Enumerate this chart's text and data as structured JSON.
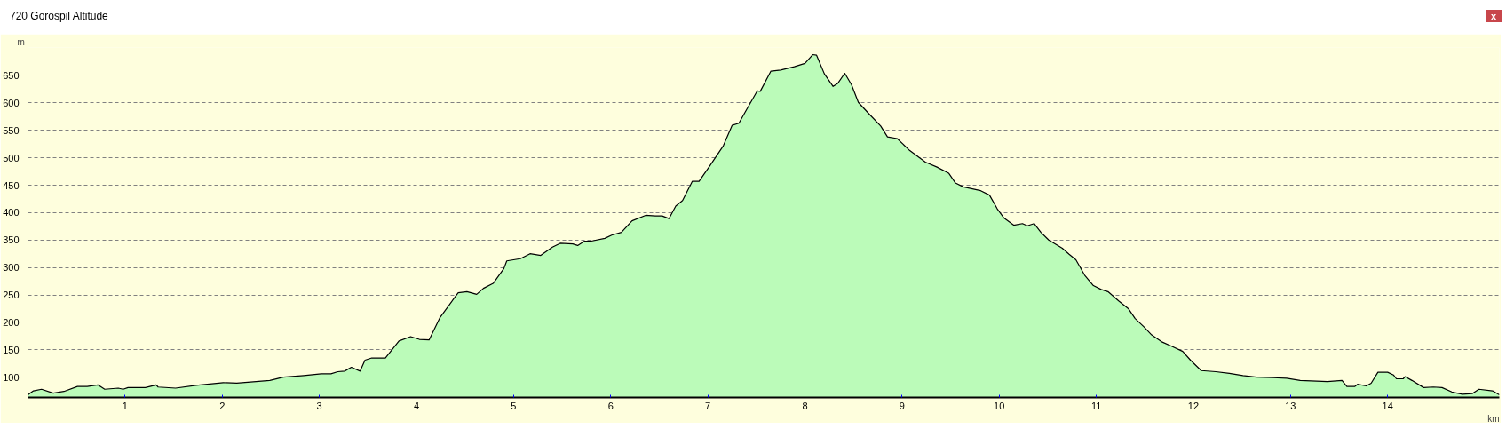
{
  "chart_data": {
    "type": "area",
    "title": "720 Gorospil Altitude",
    "xlabel": "km",
    "ylabel": "m",
    "annotations": [
      "x"
    ],
    "x": [
      0,
      0.056,
      0.14,
      0.26,
      0.37,
      0.51,
      0.61,
      0.72,
      0.79,
      0.93,
      0.98,
      1.03,
      1.21,
      1.32,
      1.34,
      1.52,
      1.73,
      2.01,
      2.15,
      2.49,
      2.63,
      2.84,
      3.02,
      3.12,
      3.19,
      3.26,
      3.33,
      3.42,
      3.47,
      3.54,
      3.68,
      3.82,
      3.94,
      4.03,
      4.13,
      4.24,
      4.38,
      4.43,
      4.52,
      4.62,
      4.69,
      4.79,
      4.9,
      4.93,
      5.0,
      5.07,
      5.17,
      5.28,
      5.4,
      5.48,
      5.61,
      5.66,
      5.73,
      5.8,
      5.94,
      6.01,
      6.11,
      6.22,
      6.36,
      6.46,
      6.53,
      6.6,
      6.67,
      6.74,
      6.84,
      6.91,
      7.02,
      7.16,
      7.25,
      7.32,
      7.4,
      7.51,
      7.54,
      7.65,
      7.75,
      7.89,
      8.0,
      8.08,
      8.12,
      8.2,
      8.29,
      8.34,
      8.41,
      8.48,
      8.55,
      8.66,
      8.78,
      8.85,
      8.95,
      9.08,
      9.24,
      9.36,
      9.48,
      9.55,
      9.63,
      9.81,
      9.9,
      9.98,
      10.05,
      10.15,
      10.24,
      10.29,
      10.36,
      10.43,
      10.51,
      10.65,
      10.72,
      10.79,
      10.88,
      10.97,
      11.05,
      11.12,
      11.23,
      11.33,
      11.4,
      11.49,
      11.57,
      11.68,
      11.78,
      11.89,
      11.97,
      12.08,
      12.23,
      12.37,
      12.51,
      12.65,
      12.82,
      12.96,
      13.1,
      13.38,
      13.53,
      13.58,
      13.66,
      13.69,
      13.78,
      13.83,
      13.9,
      14.0,
      14.06,
      14.09,
      14.16,
      14.18,
      14.25,
      14.37,
      14.47,
      14.56,
      14.66,
      14.77,
      14.87,
      14.94,
      15.08,
      15.15
    ],
    "series": [
      {
        "color": "#bbfbb9",
        "values": [
          68,
          75,
          78,
          71,
          74,
          83,
          83,
          86,
          78,
          80,
          78,
          81,
          81,
          86,
          82,
          80,
          85,
          90,
          89,
          94,
          100,
          103,
          106,
          106,
          110,
          111,
          118,
          111,
          131,
          135,
          135,
          166,
          174,
          169,
          168,
          208,
          242,
          254,
          256,
          251,
          262,
          271,
          298,
          312,
          314,
          316,
          325,
          322,
          337,
          344,
          343,
          340,
          348,
          348,
          353,
          359,
          364,
          385,
          395,
          394,
          394,
          389,
          412,
          422,
          457,
          457,
          485,
          522,
          559,
          563,
          588,
          622,
          621,
          658,
          660,
          666,
          672,
          688,
          687,
          653,
          630,
          636,
          654,
          633,
          601,
          580,
          558,
          538,
          535,
          513,
          492,
          483,
          472,
          454,
          447,
          440,
          432,
          407,
          390,
          377,
          380,
          376,
          380,
          364,
          350,
          335,
          324,
          314,
          286,
          267,
          260,
          256,
          239,
          225,
          207,
          192,
          177,
          164,
          156,
          147,
          131,
          112,
          110,
          107,
          103,
          100,
          99,
          98,
          94,
          92,
          94,
          83,
          83,
          87,
          84,
          89,
          109,
          109,
          104,
          97,
          97,
          101,
          94,
          81,
          82,
          81,
          73,
          69,
          70,
          78,
          75,
          68
        ]
      }
    ],
    "xlim": [
      0,
      15.15
    ],
    "ylim": [
      63,
      701
    ],
    "xticks": [
      1,
      2,
      3,
      4,
      5,
      6,
      7,
      8,
      9,
      10,
      11,
      12,
      13,
      14
    ],
    "yticks": [
      100,
      150,
      200,
      250,
      300,
      350,
      400,
      450,
      500,
      550,
      600,
      650
    ],
    "grid": "y",
    "line_style": "solid",
    "marker": "none"
  }
}
